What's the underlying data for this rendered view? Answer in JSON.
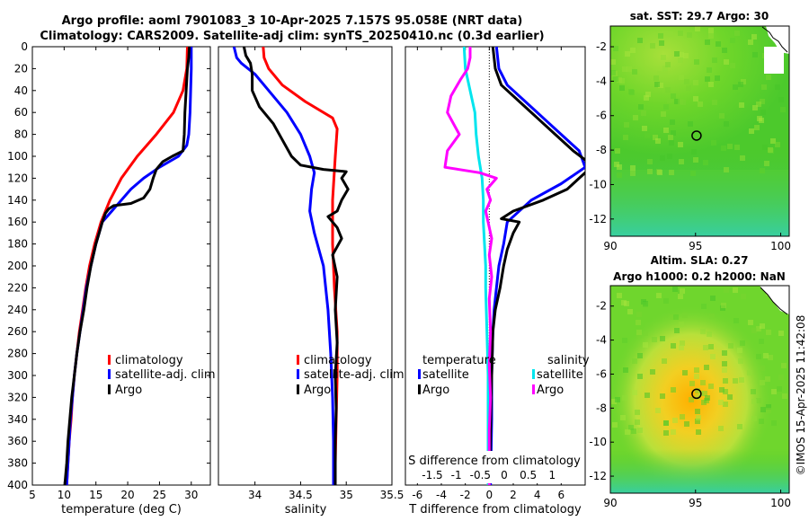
{
  "titles": {
    "line1": "Argo profile: aoml 7901083_3 10-Apr-2025 7.157S 95.058E (NRT data)",
    "line2": "Climatology: CARS2009. Satellite-adj clim: synTS_20250410.nc (0.3d earlier)"
  },
  "copyright": "©IMOS 15-Apr-2025 11:42:08",
  "colors": {
    "climatology": "#ff0000",
    "satellite": "#0000ff",
    "argo": "#000000",
    "sal_satellite": "#00e5ee",
    "sal_argo": "#ff00ff"
  },
  "chart_data": [
    {
      "type": "line",
      "id": "temperature",
      "xlabel": "temperature (deg C)",
      "ylabel": "depth",
      "xlim": [
        5,
        33
      ],
      "ylim": [
        400,
        0
      ],
      "xticks": [
        5,
        10,
        15,
        20,
        25,
        30
      ],
      "yticks": [
        0,
        20,
        40,
        60,
        80,
        100,
        120,
        140,
        160,
        180,
        200,
        220,
        240,
        260,
        280,
        300,
        320,
        340,
        360,
        380,
        400
      ],
      "legend": [
        "climatology",
        "satellite-adj. clim",
        "Argo"
      ],
      "legend_position": "lower-right",
      "series": [
        {
          "name": "climatology",
          "color": "#ff0000",
          "points": [
            [
              29.4,
              0
            ],
            [
              29.3,
              20
            ],
            [
              28.7,
              40
            ],
            [
              27.2,
              60
            ],
            [
              24.5,
              80
            ],
            [
              21.5,
              100
            ],
            [
              19.0,
              120
            ],
            [
              17.2,
              140
            ],
            [
              15.8,
              160
            ],
            [
              14.8,
              180
            ],
            [
              14.0,
              200
            ],
            [
              13.4,
              220
            ],
            [
              12.9,
              240
            ],
            [
              12.4,
              260
            ],
            [
              12.0,
              280
            ],
            [
              11.6,
              300
            ],
            [
              11.3,
              320
            ],
            [
              11.1,
              340
            ],
            [
              10.8,
              360
            ],
            [
              10.6,
              380
            ],
            [
              10.4,
              400
            ]
          ]
        },
        {
          "name": "satellite-adj. clim",
          "color": "#0000ff",
          "points": [
            [
              30.0,
              0
            ],
            [
              30.0,
              20
            ],
            [
              29.9,
              40
            ],
            [
              29.8,
              60
            ],
            [
              29.6,
              80
            ],
            [
              29.3,
              90
            ],
            [
              28.0,
              100
            ],
            [
              25.0,
              110
            ],
            [
              22.5,
              120
            ],
            [
              20.5,
              130
            ],
            [
              19.0,
              140
            ],
            [
              17.5,
              150
            ],
            [
              16.0,
              160
            ],
            [
              15.0,
              180
            ],
            [
              14.2,
              200
            ],
            [
              13.5,
              220
            ],
            [
              13.0,
              240
            ],
            [
              12.5,
              260
            ],
            [
              12.0,
              280
            ],
            [
              11.6,
              300
            ],
            [
              11.3,
              320
            ],
            [
              11.0,
              340
            ],
            [
              10.8,
              360
            ],
            [
              10.6,
              380
            ],
            [
              10.4,
              400
            ]
          ]
        },
        {
          "name": "Argo",
          "color": "#000000",
          "points": [
            [
              29.7,
              0
            ],
            [
              29.6,
              10
            ],
            [
              29.4,
              20
            ],
            [
              29.2,
              40
            ],
            [
              29.0,
              60
            ],
            [
              28.9,
              80
            ],
            [
              28.7,
              95
            ],
            [
              27.0,
              100
            ],
            [
              25.5,
              105
            ],
            [
              24.5,
              112
            ],
            [
              24.0,
              120
            ],
            [
              23.5,
              130
            ],
            [
              22.5,
              138
            ],
            [
              20.5,
              143
            ],
            [
              17.8,
              145
            ],
            [
              17.0,
              148
            ],
            [
              16.5,
              152
            ],
            [
              16.0,
              160
            ],
            [
              15.5,
              170
            ],
            [
              15.0,
              180
            ],
            [
              14.2,
              200
            ],
            [
              13.6,
              220
            ],
            [
              13.1,
              240
            ],
            [
              12.5,
              260
            ],
            [
              12.0,
              280
            ],
            [
              11.6,
              300
            ],
            [
              11.2,
              320
            ],
            [
              10.9,
              340
            ],
            [
              10.6,
              360
            ],
            [
              10.4,
              380
            ],
            [
              10.1,
              400
            ]
          ]
        }
      ]
    },
    {
      "type": "line",
      "id": "salinity",
      "xlabel": "salinity",
      "ylabel": "depth",
      "xlim": [
        33.6,
        35.5
      ],
      "ylim": [
        400,
        0
      ],
      "xticks": [
        34,
        34.5,
        35,
        35.5
      ],
      "legend": [
        "climatology",
        "satellite-adj. clim",
        "Argo"
      ],
      "legend_position": "lower-right",
      "series": [
        {
          "name": "climatology",
          "color": "#ff0000",
          "points": [
            [
              34.09,
              0
            ],
            [
              34.1,
              10
            ],
            [
              34.15,
              20
            ],
            [
              34.3,
              35
            ],
            [
              34.55,
              50
            ],
            [
              34.85,
              65
            ],
            [
              34.9,
              75
            ],
            [
              34.88,
              100
            ],
            [
              34.85,
              140
            ],
            [
              34.85,
              180
            ],
            [
              34.87,
              220
            ],
            [
              34.9,
              260
            ],
            [
              34.9,
              300
            ],
            [
              34.89,
              340
            ],
            [
              34.88,
              380
            ],
            [
              34.87,
              400
            ]
          ]
        },
        {
          "name": "satellite-adj. clim",
          "color": "#0000ff",
          "points": [
            [
              33.77,
              0
            ],
            [
              33.8,
              10
            ],
            [
              33.85,
              15
            ],
            [
              34.0,
              25
            ],
            [
              34.15,
              40
            ],
            [
              34.35,
              60
            ],
            [
              34.5,
              80
            ],
            [
              34.6,
              100
            ],
            [
              34.65,
              115
            ],
            [
              34.62,
              130
            ],
            [
              34.6,
              150
            ],
            [
              34.65,
              170
            ],
            [
              34.75,
              200
            ],
            [
              34.8,
              240
            ],
            [
              34.83,
              280
            ],
            [
              34.85,
              320
            ],
            [
              34.86,
              360
            ],
            [
              34.86,
              400
            ]
          ]
        },
        {
          "name": "Argo",
          "color": "#000000",
          "points": [
            [
              33.88,
              0
            ],
            [
              33.9,
              8
            ],
            [
              33.95,
              15
            ],
            [
              33.97,
              25
            ],
            [
              33.97,
              40
            ],
            [
              34.05,
              55
            ],
            [
              34.2,
              70
            ],
            [
              34.3,
              85
            ],
            [
              34.4,
              100
            ],
            [
              34.5,
              108
            ],
            [
              34.75,
              112
            ],
            [
              35.0,
              114
            ],
            [
              34.95,
              120
            ],
            [
              35.02,
              130
            ],
            [
              34.95,
              140
            ],
            [
              34.9,
              150
            ],
            [
              34.8,
              155
            ],
            [
              34.9,
              165
            ],
            [
              34.95,
              175
            ],
            [
              34.85,
              190
            ],
            [
              34.9,
              210
            ],
            [
              34.88,
              240
            ],
            [
              34.9,
              270
            ],
            [
              34.88,
              300
            ],
            [
              34.89,
              330
            ],
            [
              34.88,
              360
            ],
            [
              34.88,
              400
            ]
          ]
        }
      ]
    },
    {
      "type": "line",
      "id": "difference",
      "xlabel": "T difference from climatology",
      "x2label": "S difference from climatology",
      "xlim": [
        -7,
        8
      ],
      "ylim": [
        400,
        0
      ],
      "xticks": [
        -6,
        -4,
        -2,
        0,
        2,
        4,
        6
      ],
      "x2ticklabels": [
        "-1.5",
        "-1",
        "-0.5",
        "0",
        "0.5",
        "1",
        "1.5"
      ],
      "legend_groups": [
        {
          "heading": "temperature",
          "entries": [
            "satellite",
            "Argo"
          ]
        },
        {
          "heading": "salinity",
          "entries": [
            "satellite",
            "Argo"
          ]
        }
      ],
      "series": [
        {
          "name": "temperature satellite",
          "color": "#0000ff",
          "points": [
            [
              0.6,
              0
            ],
            [
              0.8,
              20
            ],
            [
              1.5,
              35
            ],
            [
              3.0,
              50
            ],
            [
              4.5,
              65
            ],
            [
              6.0,
              80
            ],
            [
              7.5,
              95
            ],
            [
              8.0,
              110
            ],
            [
              6.0,
              125
            ],
            [
              3.5,
              140
            ],
            [
              1.5,
              160
            ],
            [
              1.2,
              180
            ],
            [
              0.8,
              200
            ],
            [
              0.6,
              220
            ],
            [
              0.4,
              240
            ],
            [
              0.3,
              260
            ],
            [
              0.2,
              300
            ],
            [
              0.2,
              340
            ],
            [
              0.1,
              400
            ]
          ]
        },
        {
          "name": "temperature Argo",
          "color": "#000000",
          "points": [
            [
              0.3,
              0
            ],
            [
              0.5,
              20
            ],
            [
              1.0,
              35
            ],
            [
              2.5,
              50
            ],
            [
              4.0,
              65
            ],
            [
              5.5,
              80
            ],
            [
              7.0,
              95
            ],
            [
              8.2,
              105
            ],
            [
              8.5,
              110
            ],
            [
              7.5,
              120
            ],
            [
              6.5,
              130
            ],
            [
              4.5,
              140
            ],
            [
              2.0,
              150
            ],
            [
              1.0,
              157
            ],
            [
              2.5,
              160
            ],
            [
              2.0,
              170
            ],
            [
              1.5,
              185
            ],
            [
              1.2,
              200
            ],
            [
              0.9,
              220
            ],
            [
              0.5,
              240
            ],
            [
              0.3,
              260
            ],
            [
              0.2,
              300
            ],
            [
              0.1,
              350
            ],
            [
              0.0,
              400
            ]
          ]
        },
        {
          "name": "salinity satellite",
          "color": "#00e5ee",
          "points": [
            [
              -2.1,
              0
            ],
            [
              -2.0,
              20
            ],
            [
              -1.6,
              40
            ],
            [
              -1.2,
              60
            ],
            [
              -1.1,
              80
            ],
            [
              -0.9,
              100
            ],
            [
              -0.6,
              120
            ],
            [
              -0.5,
              140
            ],
            [
              -0.5,
              160
            ],
            [
              -0.4,
              180
            ],
            [
              -0.3,
              200
            ],
            [
              -0.3,
              220
            ],
            [
              -0.2,
              260
            ],
            [
              -0.1,
              300
            ],
            [
              -0.1,
              340
            ],
            [
              -0.1,
              400
            ]
          ]
        },
        {
          "name": "salinity Argo",
          "color": "#ff00ff",
          "points": [
            [
              -1.6,
              0
            ],
            [
              -1.6,
              10
            ],
            [
              -1.8,
              20
            ],
            [
              -2.4,
              30
            ],
            [
              -3.2,
              45
            ],
            [
              -3.5,
              60
            ],
            [
              -3.0,
              70
            ],
            [
              -2.5,
              80
            ],
            [
              -3.5,
              95
            ],
            [
              -3.7,
              110
            ],
            [
              -0.8,
              115
            ],
            [
              0.6,
              120
            ],
            [
              -0.2,
              130
            ],
            [
              0.1,
              140
            ],
            [
              -0.3,
              150
            ],
            [
              -0.1,
              160
            ],
            [
              0.2,
              175
            ],
            [
              0.0,
              190
            ],
            [
              0.2,
              210
            ],
            [
              0.0,
              230
            ],
            [
              0.1,
              260
            ],
            [
              0.0,
              290
            ],
            [
              0.1,
              320
            ],
            [
              0.0,
              350
            ],
            [
              0.0,
              400
            ]
          ]
        }
      ]
    },
    {
      "type": "heatmap",
      "id": "sst-map",
      "title": "sat. SST: 29.7 Argo: 30",
      "xlim": [
        90,
        100.5
      ],
      "ylim": [
        -13,
        -0.8
      ],
      "xticks": [
        90,
        95,
        100
      ],
      "yticks": [
        -2,
        -4,
        -6,
        -8,
        -10,
        -12
      ],
      "marker": {
        "lon": 95.06,
        "lat": -7.16
      }
    },
    {
      "type": "heatmap",
      "id": "sla-map",
      "title": "Altim. SLA: 0.27",
      "subtitle": "Argo h1000: 0.2 h2000: NaN",
      "xlim": [
        90,
        100.5
      ],
      "ylim": [
        -13,
        -0.8
      ],
      "xticks": [
        90,
        95,
        100
      ],
      "yticks": [
        -2,
        -4,
        -6,
        -8,
        -10,
        -12
      ],
      "marker": {
        "lon": 95.06,
        "lat": -7.16
      }
    }
  ]
}
